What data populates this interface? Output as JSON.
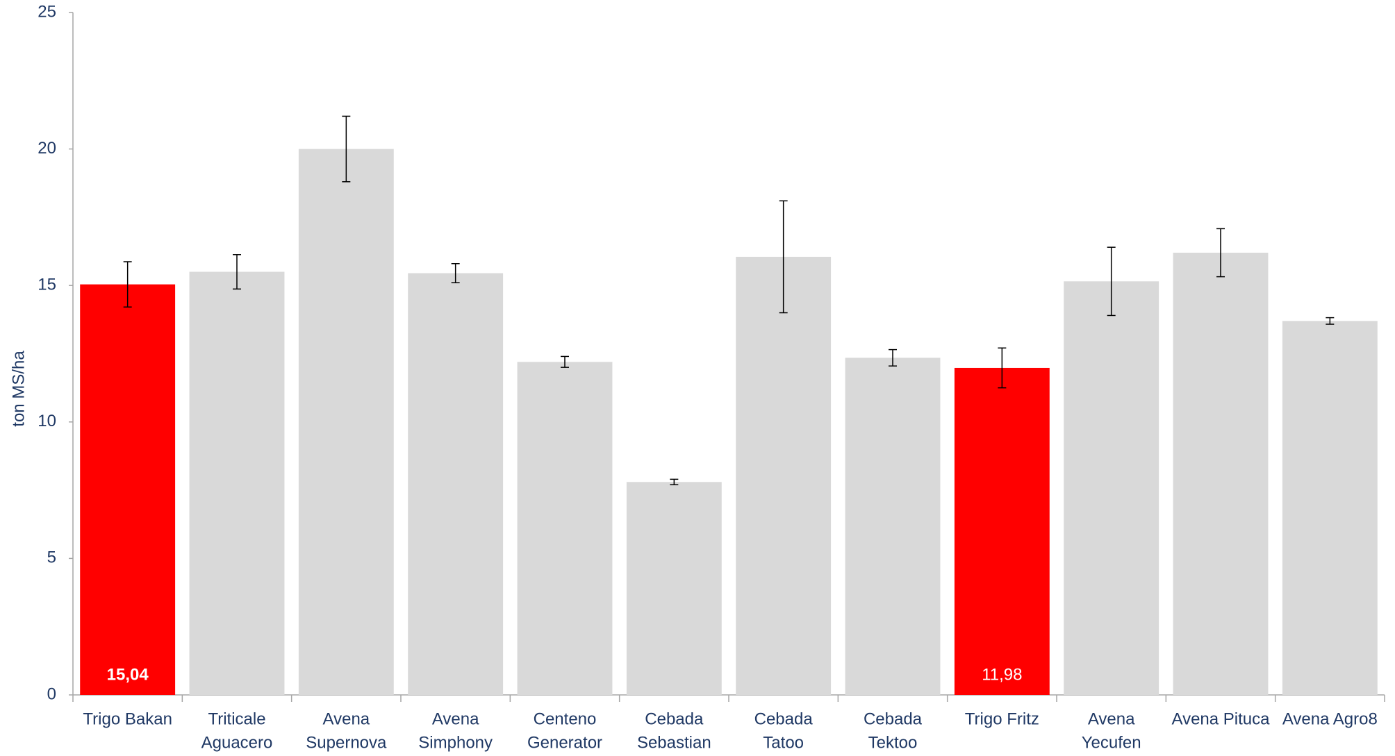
{
  "chart_data": {
    "type": "bar",
    "y_label": "ton MS/ha",
    "categories": [
      [
        "Trigo Bakan"
      ],
      [
        "Triticale",
        "Aguacero"
      ],
      [
        "Avena",
        "Supernova"
      ],
      [
        "Avena",
        "Simphony"
      ],
      [
        "Centeno",
        "Generator"
      ],
      [
        "Cebada",
        "Sebastian"
      ],
      [
        "Cebada",
        "Tatoo"
      ],
      [
        "Cebada",
        "Tektoo"
      ],
      [
        "Trigo Fritz"
      ],
      [
        "Avena",
        "Yecufen"
      ],
      [
        "Avena Pituca"
      ],
      [
        "Avena Agro8"
      ]
    ],
    "values": [
      15.04,
      15.5,
      20.0,
      15.45,
      12.2,
      7.8,
      16.05,
      12.35,
      11.98,
      15.15,
      16.2,
      13.7
    ],
    "errors": [
      0.83,
      0.63,
      1.2,
      0.35,
      0.2,
      0.1,
      2.05,
      0.3,
      0.73,
      1.25,
      0.88,
      0.12
    ],
    "value_labels": [
      "15,04",
      null,
      null,
      null,
      null,
      null,
      null,
      null,
      "11,98",
      null,
      null,
      null
    ],
    "colors": [
      "#ff0000",
      "#d9d9d9",
      "#d9d9d9",
      "#d9d9d9",
      "#d9d9d9",
      "#d9d9d9",
      "#d9d9d9",
      "#d9d9d9",
      "#ff0000",
      "#d9d9d9",
      "#d9d9d9",
      "#d9d9d9"
    ],
    "ylim": [
      0,
      25
    ],
    "yticks": [
      0,
      5,
      10,
      15,
      20,
      25
    ],
    "grid": false
  }
}
